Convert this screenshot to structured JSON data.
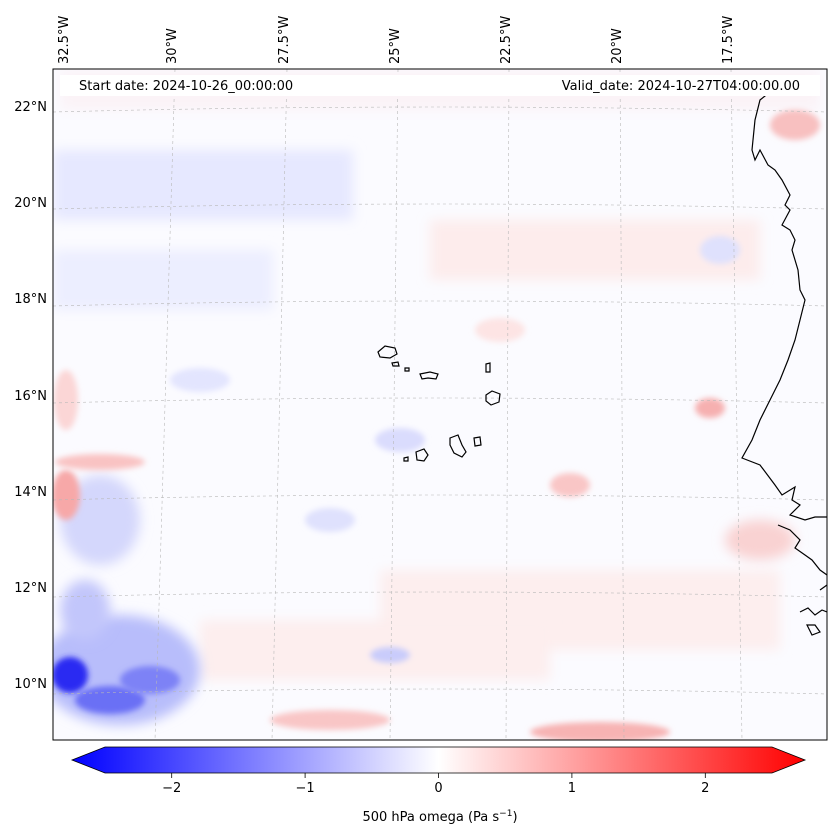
{
  "map": {
    "start_label": "Start date: 2024-10-26_00:00:00",
    "valid_label": "Valid_date: 2024-10-27T04:00:00.00",
    "lon_labels": [
      "32.5°W",
      "30°W",
      "27.5°W",
      "25°W",
      "22.5°W",
      "20°W",
      "17.5°W"
    ],
    "lat_labels": [
      "22°N",
      "20°N",
      "18°N",
      "16°N",
      "14°N",
      "12°N",
      "10°N"
    ],
    "field": "500 hPa omega",
    "colors": {
      "negative": "#0000ff",
      "zero": "#ffffff",
      "positive": "#ff0000",
      "coastline": "#000000",
      "grid": "#b0b0b0"
    }
  },
  "colorbar": {
    "ticks": [
      "−2",
      "−1",
      "0",
      "1",
      "2"
    ],
    "tick_values": [
      -2,
      -1,
      0,
      1,
      2
    ],
    "range": [
      -2.5,
      2.5
    ],
    "label_main": "500 hPa omega (Pa s",
    "label_sup": "−1",
    "label_end": ")"
  }
}
